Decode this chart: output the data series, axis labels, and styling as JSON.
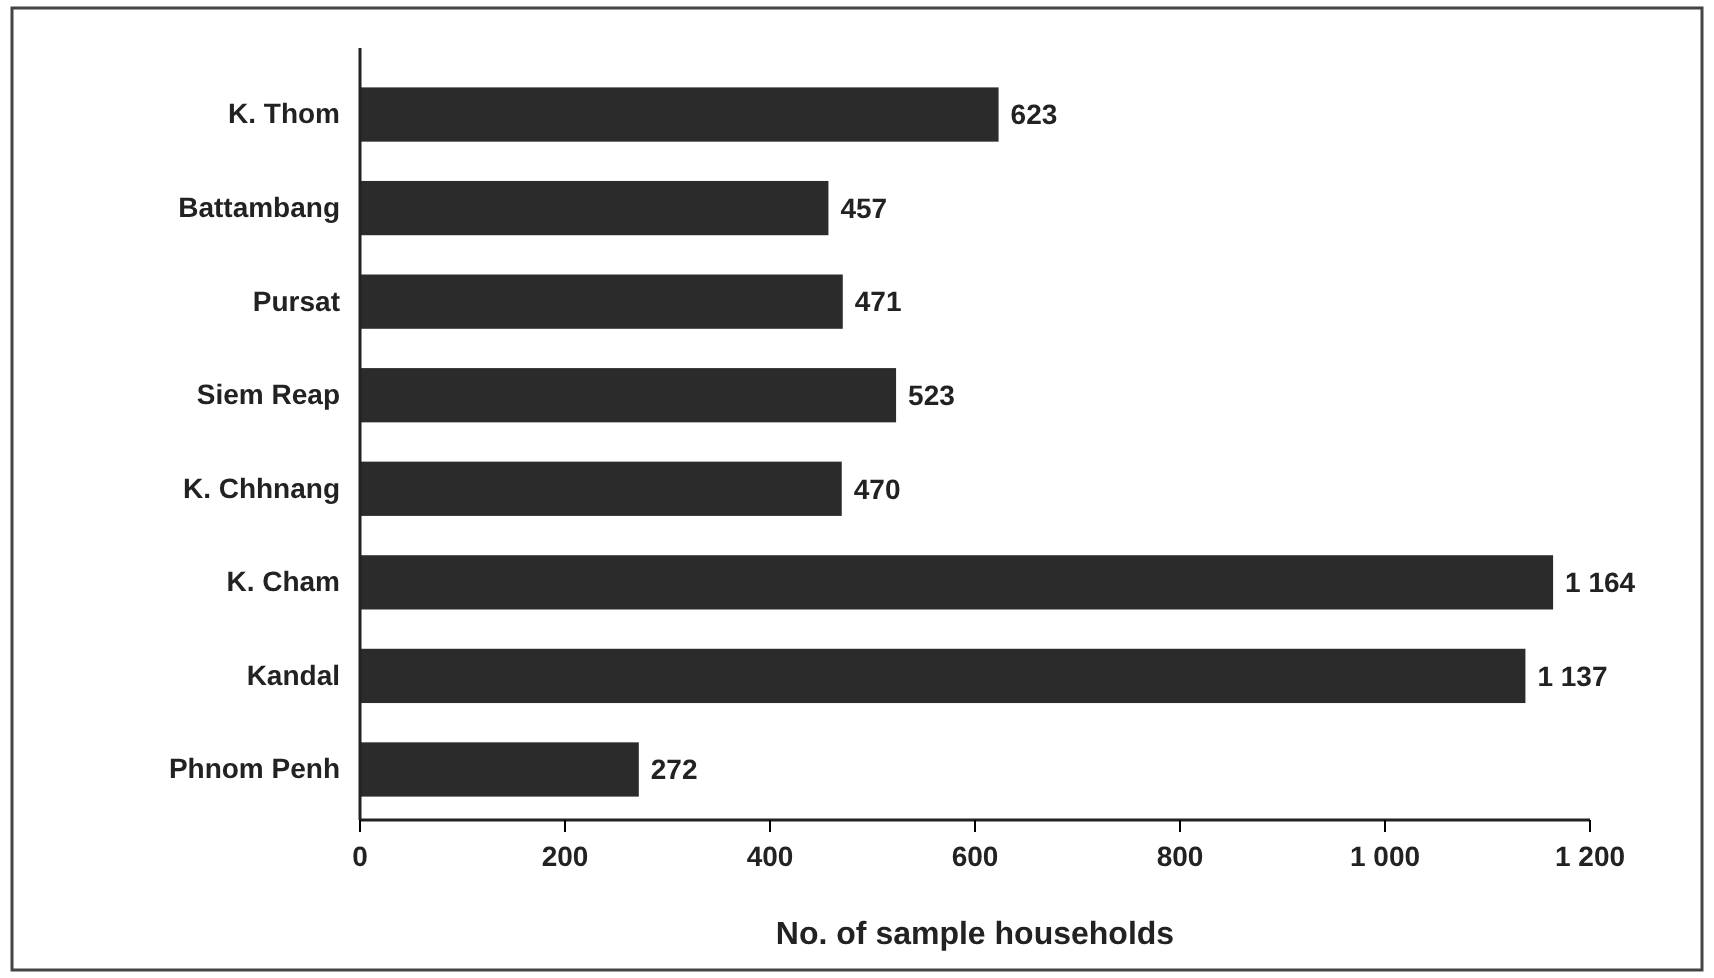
{
  "chart_data": {
    "type": "bar",
    "orientation": "horizontal",
    "xlabel": "No. of sample households",
    "categories": [
      "K. Thom",
      "Battambang",
      "Pursat",
      "Siem Reap",
      "K. Chhnang",
      "K. Cham",
      "Kandal",
      "Phnom Penh"
    ],
    "values": [
      623,
      457,
      471,
      523,
      470,
      1164,
      1137,
      272
    ],
    "value_labels": [
      "623",
      "457",
      "471",
      "523",
      "470",
      "1 164",
      "1 137",
      "272"
    ],
    "color": "#2b2b2b",
    "xlim": [
      0,
      1200
    ],
    "xticks": [
      0,
      200,
      400,
      600,
      800,
      {
        "value": 1000,
        "label": "1 000"
      },
      {
        "value": 1200,
        "label": "1 200"
      }
    ],
    "grid": false
  }
}
